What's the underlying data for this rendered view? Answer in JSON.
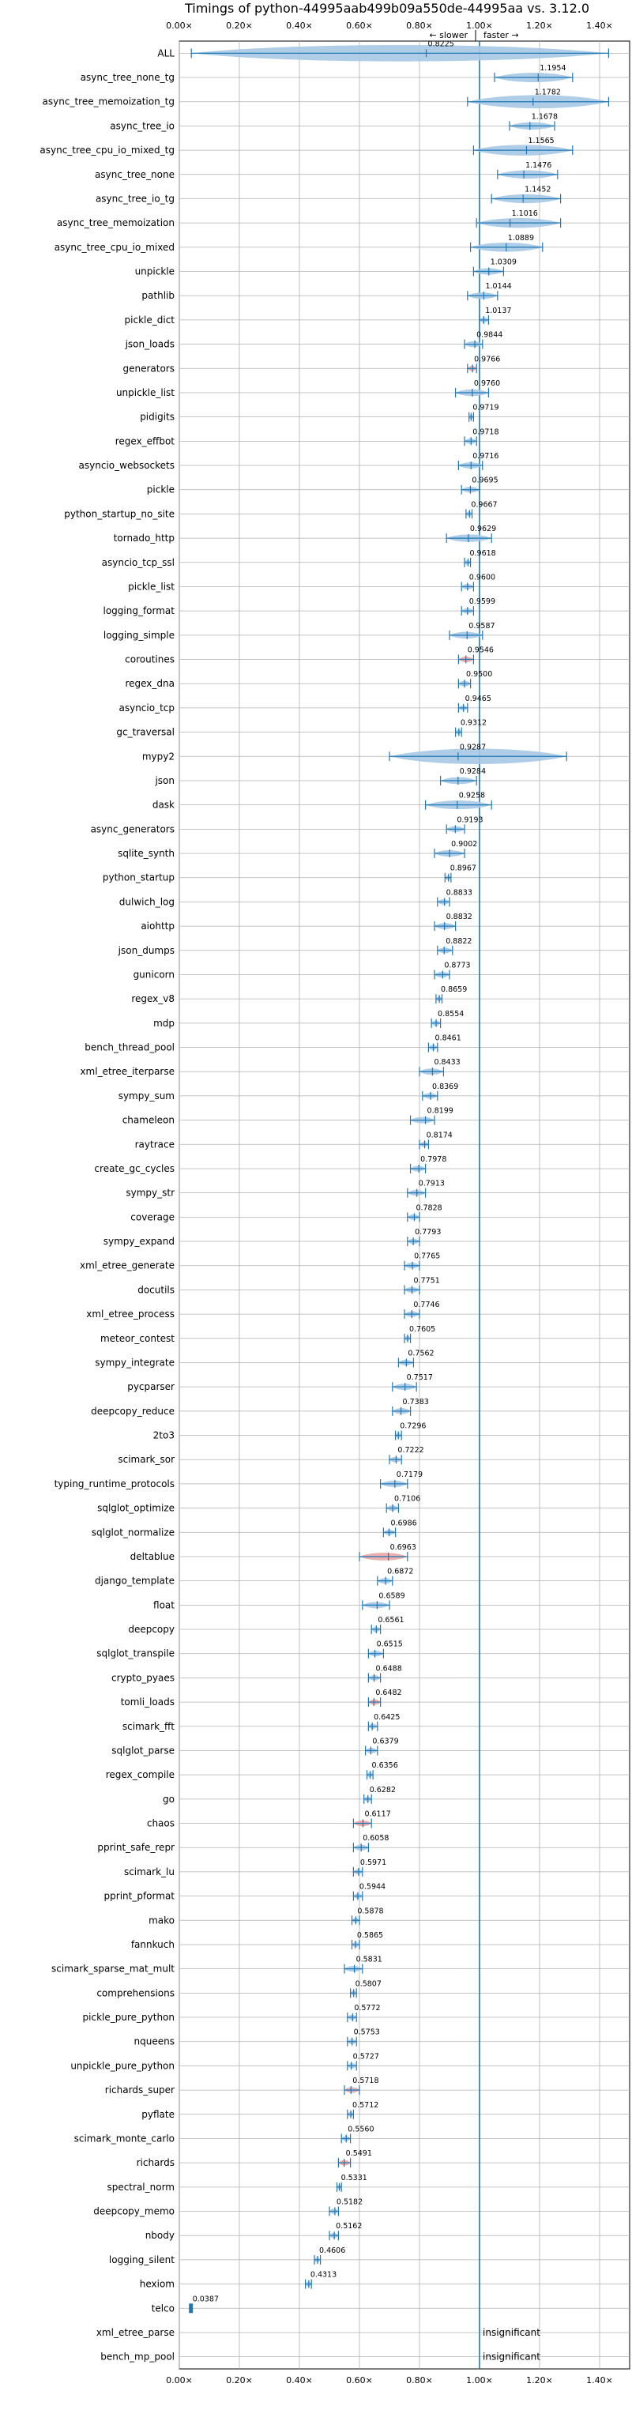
{
  "chart_data": {
    "type": "violin",
    "title": "Timings of python-44995aab499b09a550de-44995aa vs. 3.12.0",
    "direction_labels": {
      "slower": "← slower",
      "faster": "faster →"
    },
    "xlim": [
      0.0,
      1.5
    ],
    "xticks": [
      "0.00×",
      "0.20×",
      "0.40×",
      "0.60×",
      "0.80×",
      "1.00×",
      "1.20×",
      "1.40×"
    ],
    "grid": true,
    "reference_line": 1.0,
    "colors": {
      "violin": "#a6c8e4",
      "violin_highlight": "#e8a6a6",
      "line": "#1f77b4"
    },
    "insignificant_label": "insignificant",
    "benchmarks": [
      {
        "name": "ALL",
        "value": 0.8225,
        "min": 0.04,
        "max": 1.43
      },
      {
        "name": "async_tree_none_tg",
        "value": 1.1954,
        "min": 1.05,
        "max": 1.31
      },
      {
        "name": "async_tree_memoization_tg",
        "value": 1.1782,
        "min": 0.96,
        "max": 1.43
      },
      {
        "name": "async_tree_io",
        "value": 1.1678,
        "min": 1.1,
        "max": 1.25
      },
      {
        "name": "async_tree_cpu_io_mixed_tg",
        "value": 1.1565,
        "min": 0.98,
        "max": 1.31
      },
      {
        "name": "async_tree_none",
        "value": 1.1476,
        "min": 1.06,
        "max": 1.26
      },
      {
        "name": "async_tree_io_tg",
        "value": 1.1452,
        "min": 1.04,
        "max": 1.27
      },
      {
        "name": "async_tree_memoization",
        "value": 1.1016,
        "min": 0.99,
        "max": 1.27
      },
      {
        "name": "async_tree_cpu_io_mixed",
        "value": 1.0889,
        "min": 0.97,
        "max": 1.21
      },
      {
        "name": "unpickle",
        "value": 1.0309,
        "min": 0.98,
        "max": 1.08
      },
      {
        "name": "pathlib",
        "value": 1.0144,
        "min": 0.96,
        "max": 1.06
      },
      {
        "name": "pickle_dict",
        "value": 1.0137,
        "min": 1.0,
        "max": 1.03
      },
      {
        "name": "json_loads",
        "value": 0.9844,
        "min": 0.95,
        "max": 1.01
      },
      {
        "name": "generators",
        "value": 0.9766,
        "min": 0.96,
        "max": 0.99,
        "highlight": true
      },
      {
        "name": "unpickle_list",
        "value": 0.976,
        "min": 0.92,
        "max": 1.03
      },
      {
        "name": "pidigits",
        "value": 0.9719,
        "min": 0.965,
        "max": 0.98
      },
      {
        "name": "regex_effbot",
        "value": 0.9718,
        "min": 0.95,
        "max": 0.99
      },
      {
        "name": "asyncio_websockets",
        "value": 0.9716,
        "min": 0.93,
        "max": 1.01
      },
      {
        "name": "pickle",
        "value": 0.9695,
        "min": 0.94,
        "max": 1.0
      },
      {
        "name": "python_startup_no_site",
        "value": 0.9667,
        "min": 0.955,
        "max": 0.975
      },
      {
        "name": "tornado_http",
        "value": 0.9629,
        "min": 0.89,
        "max": 1.04
      },
      {
        "name": "asyncio_tcp_ssl",
        "value": 0.9618,
        "min": 0.95,
        "max": 0.97
      },
      {
        "name": "pickle_list",
        "value": 0.96,
        "min": 0.94,
        "max": 0.98
      },
      {
        "name": "logging_format",
        "value": 0.9599,
        "min": 0.94,
        "max": 0.98
      },
      {
        "name": "logging_simple",
        "value": 0.9587,
        "min": 0.9,
        "max": 1.01
      },
      {
        "name": "coroutines",
        "value": 0.9546,
        "min": 0.93,
        "max": 0.98,
        "highlight": true
      },
      {
        "name": "regex_dna",
        "value": 0.95,
        "min": 0.93,
        "max": 0.97
      },
      {
        "name": "asyncio_tcp",
        "value": 0.9465,
        "min": 0.93,
        "max": 0.96
      },
      {
        "name": "gc_traversal",
        "value": 0.9312,
        "min": 0.92,
        "max": 0.94
      },
      {
        "name": "mypy2",
        "value": 0.9287,
        "min": 0.7,
        "max": 1.29
      },
      {
        "name": "json",
        "value": 0.9284,
        "min": 0.87,
        "max": 0.99
      },
      {
        "name": "dask",
        "value": 0.9258,
        "min": 0.82,
        "max": 1.04
      },
      {
        "name": "async_generators",
        "value": 0.9193,
        "min": 0.89,
        "max": 0.95
      },
      {
        "name": "sqlite_synth",
        "value": 0.9002,
        "min": 0.85,
        "max": 0.95
      },
      {
        "name": "python_startup",
        "value": 0.8967,
        "min": 0.885,
        "max": 0.905
      },
      {
        "name": "dulwich_log",
        "value": 0.8833,
        "min": 0.86,
        "max": 0.9
      },
      {
        "name": "aiohttp",
        "value": 0.8832,
        "min": 0.85,
        "max": 0.92
      },
      {
        "name": "json_dumps",
        "value": 0.8822,
        "min": 0.86,
        "max": 0.91
      },
      {
        "name": "gunicorn",
        "value": 0.8773,
        "min": 0.85,
        "max": 0.9
      },
      {
        "name": "regex_v8",
        "value": 0.8659,
        "min": 0.855,
        "max": 0.875
      },
      {
        "name": "mdp",
        "value": 0.8554,
        "min": 0.84,
        "max": 0.87
      },
      {
        "name": "bench_thread_pool",
        "value": 0.8461,
        "min": 0.83,
        "max": 0.86
      },
      {
        "name": "xml_etree_iterparse",
        "value": 0.8433,
        "min": 0.8,
        "max": 0.88
      },
      {
        "name": "sympy_sum",
        "value": 0.8369,
        "min": 0.81,
        "max": 0.86
      },
      {
        "name": "chameleon",
        "value": 0.8199,
        "min": 0.77,
        "max": 0.85
      },
      {
        "name": "raytrace",
        "value": 0.8174,
        "min": 0.8,
        "max": 0.83
      },
      {
        "name": "create_gc_cycles",
        "value": 0.7978,
        "min": 0.77,
        "max": 0.82
      },
      {
        "name": "sympy_str",
        "value": 0.7913,
        "min": 0.76,
        "max": 0.82
      },
      {
        "name": "coverage",
        "value": 0.7828,
        "min": 0.76,
        "max": 0.8
      },
      {
        "name": "sympy_expand",
        "value": 0.7793,
        "min": 0.76,
        "max": 0.8
      },
      {
        "name": "xml_etree_generate",
        "value": 0.7765,
        "min": 0.75,
        "max": 0.8
      },
      {
        "name": "docutils",
        "value": 0.7751,
        "min": 0.75,
        "max": 0.8
      },
      {
        "name": "xml_etree_process",
        "value": 0.7746,
        "min": 0.75,
        "max": 0.8
      },
      {
        "name": "meteor_contest",
        "value": 0.7605,
        "min": 0.75,
        "max": 0.77
      },
      {
        "name": "sympy_integrate",
        "value": 0.7562,
        "min": 0.73,
        "max": 0.78
      },
      {
        "name": "pycparser",
        "value": 0.7517,
        "min": 0.71,
        "max": 0.79
      },
      {
        "name": "deepcopy_reduce",
        "value": 0.7383,
        "min": 0.71,
        "max": 0.77
      },
      {
        "name": "2to3",
        "value": 0.7296,
        "min": 0.72,
        "max": 0.74
      },
      {
        "name": "scimark_sor",
        "value": 0.7222,
        "min": 0.7,
        "max": 0.74
      },
      {
        "name": "typing_runtime_protocols",
        "value": 0.7179,
        "min": 0.67,
        "max": 0.76
      },
      {
        "name": "sqlglot_optimize",
        "value": 0.7106,
        "min": 0.69,
        "max": 0.73
      },
      {
        "name": "sqlglot_normalize",
        "value": 0.6986,
        "min": 0.68,
        "max": 0.72
      },
      {
        "name": "deltablue",
        "value": 0.6963,
        "min": 0.6,
        "max": 0.76,
        "highlight": true
      },
      {
        "name": "django_template",
        "value": 0.6872,
        "min": 0.66,
        "max": 0.71
      },
      {
        "name": "float",
        "value": 0.6589,
        "min": 0.61,
        "max": 0.7
      },
      {
        "name": "deepcopy",
        "value": 0.6561,
        "min": 0.64,
        "max": 0.67
      },
      {
        "name": "sqlglot_transpile",
        "value": 0.6515,
        "min": 0.63,
        "max": 0.68
      },
      {
        "name": "crypto_pyaes",
        "value": 0.6488,
        "min": 0.63,
        "max": 0.67
      },
      {
        "name": "tomli_loads",
        "value": 0.6482,
        "min": 0.63,
        "max": 0.67,
        "highlight": true
      },
      {
        "name": "scimark_fft",
        "value": 0.6425,
        "min": 0.63,
        "max": 0.66
      },
      {
        "name": "sqlglot_parse",
        "value": 0.6379,
        "min": 0.62,
        "max": 0.66
      },
      {
        "name": "regex_compile",
        "value": 0.6356,
        "min": 0.625,
        "max": 0.645
      },
      {
        "name": "go",
        "value": 0.6282,
        "min": 0.615,
        "max": 0.64
      },
      {
        "name": "chaos",
        "value": 0.6117,
        "min": 0.58,
        "max": 0.64,
        "highlight": true
      },
      {
        "name": "pprint_safe_repr",
        "value": 0.6058,
        "min": 0.58,
        "max": 0.63
      },
      {
        "name": "scimark_lu",
        "value": 0.5971,
        "min": 0.58,
        "max": 0.61
      },
      {
        "name": "pprint_pformat",
        "value": 0.5944,
        "min": 0.58,
        "max": 0.61
      },
      {
        "name": "mako",
        "value": 0.5878,
        "min": 0.575,
        "max": 0.6
      },
      {
        "name": "fannkuch",
        "value": 0.5865,
        "min": 0.575,
        "max": 0.6
      },
      {
        "name": "scimark_sparse_mat_mult",
        "value": 0.5831,
        "min": 0.55,
        "max": 0.61
      },
      {
        "name": "comprehensions",
        "value": 0.5807,
        "min": 0.57,
        "max": 0.59
      },
      {
        "name": "pickle_pure_python",
        "value": 0.5772,
        "min": 0.56,
        "max": 0.59
      },
      {
        "name": "nqueens",
        "value": 0.5753,
        "min": 0.56,
        "max": 0.59
      },
      {
        "name": "unpickle_pure_python",
        "value": 0.5727,
        "min": 0.56,
        "max": 0.59
      },
      {
        "name": "richards_super",
        "value": 0.5718,
        "min": 0.55,
        "max": 0.6,
        "highlight": true
      },
      {
        "name": "pyflate",
        "value": 0.5712,
        "min": 0.56,
        "max": 0.58
      },
      {
        "name": "scimark_monte_carlo",
        "value": 0.556,
        "min": 0.54,
        "max": 0.57
      },
      {
        "name": "richards",
        "value": 0.5491,
        "min": 0.53,
        "max": 0.57,
        "highlight": true
      },
      {
        "name": "spectral_norm",
        "value": 0.5331,
        "min": 0.525,
        "max": 0.54
      },
      {
        "name": "deepcopy_memo",
        "value": 0.5182,
        "min": 0.5,
        "max": 0.53
      },
      {
        "name": "nbody",
        "value": 0.5162,
        "min": 0.5,
        "max": 0.53
      },
      {
        "name": "logging_silent",
        "value": 0.4606,
        "min": 0.45,
        "max": 0.47
      },
      {
        "name": "hexiom",
        "value": 0.4313,
        "min": 0.42,
        "max": 0.44
      },
      {
        "name": "telco",
        "value": 0.0387,
        "min": 0.035,
        "max": 0.042
      },
      {
        "name": "xml_etree_parse",
        "value": null,
        "insignificant": true
      },
      {
        "name": "bench_mp_pool",
        "value": null,
        "insignificant": true
      }
    ]
  }
}
